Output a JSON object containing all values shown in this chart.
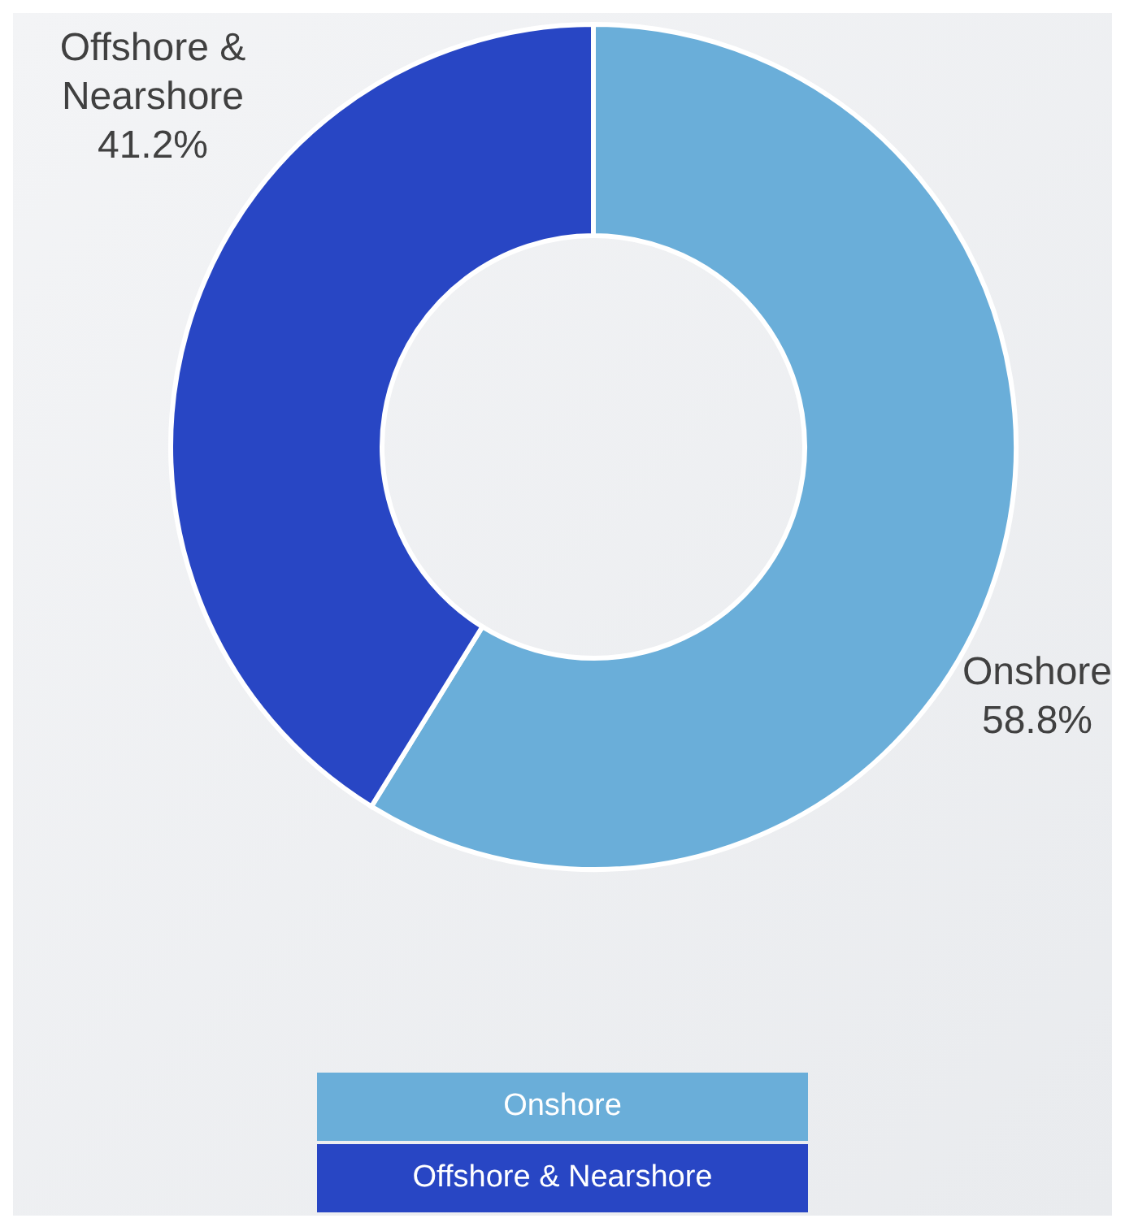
{
  "chart_data": {
    "type": "donut",
    "categories": [
      "Onshore",
      "Offshore & Nearshore"
    ],
    "values": [
      58.8,
      41.2
    ],
    "colors": [
      "#6aaed9",
      "#2846c4"
    ],
    "value_labels": [
      "58.8%",
      "41.2%"
    ]
  }
}
